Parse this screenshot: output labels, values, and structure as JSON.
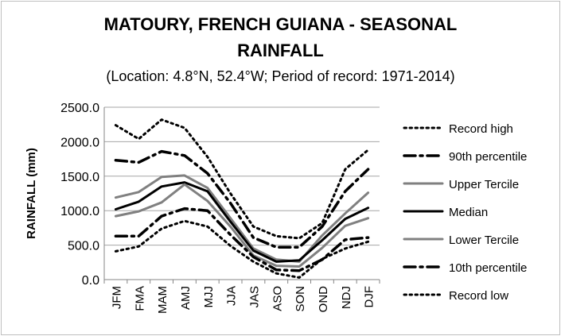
{
  "chart_data": {
    "type": "line",
    "title_line1": "MATOURY, FRENCH GUIANA - SEASONAL",
    "title_line2": "RAINFALL",
    "subtitle": "(Location: 4.8°N, 52.4°W; Period of record: 1971-2014)",
    "xlabel": "",
    "ylabel": "RAINFALL (mm)",
    "ylim": [
      0,
      2500
    ],
    "ytick_labels": [
      "0.0",
      "500.0",
      "1000.0",
      "1500.0",
      "2000.0",
      "2500.0"
    ],
    "grid": true,
    "legend_position": "right",
    "categories": [
      "JFM",
      "FMA",
      "MAM",
      "AMJ",
      "MJJ",
      "JJA",
      "JAS",
      "ASO",
      "SON",
      "OND",
      "NDJ",
      "DJF"
    ],
    "series": [
      {
        "name": "Record high",
        "color": "#000000",
        "style": "dotted",
        "values": [
          2240,
          2040,
          2320,
          2200,
          1780,
          1250,
          770,
          630,
          600,
          820,
          1600,
          1880
        ]
      },
      {
        "name": "90th percentile",
        "color": "#000000",
        "style": "dashdot",
        "values": [
          1730,
          1700,
          1860,
          1800,
          1540,
          1110,
          610,
          470,
          470,
          770,
          1280,
          1600
        ]
      },
      {
        "name": "Upper Tercile",
        "color": "#808080",
        "style": "solid",
        "values": [
          1190,
          1270,
          1490,
          1510,
          1330,
          890,
          450,
          290,
          260,
          640,
          960,
          1260
        ]
      },
      {
        "name": "Median",
        "color": "#000000",
        "style": "solid",
        "values": [
          1020,
          1130,
          1350,
          1410,
          1280,
          840,
          420,
          260,
          280,
          570,
          880,
          1040
        ]
      },
      {
        "name": "Lower Tercile",
        "color": "#808080",
        "style": "solid",
        "values": [
          920,
          990,
          1120,
          1380,
          1140,
          770,
          350,
          200,
          190,
          460,
          780,
          890
        ]
      },
      {
        "name": "10th percentile",
        "color": "#000000",
        "style": "dashdot",
        "values": [
          630,
          630,
          920,
          1030,
          1000,
          650,
          330,
          140,
          130,
          290,
          580,
          610
        ]
      },
      {
        "name": "Record low",
        "color": "#000000",
        "style": "dotted",
        "values": [
          410,
          480,
          740,
          850,
          770,
          490,
          260,
          90,
          30,
          300,
          450,
          550
        ]
      }
    ]
  }
}
